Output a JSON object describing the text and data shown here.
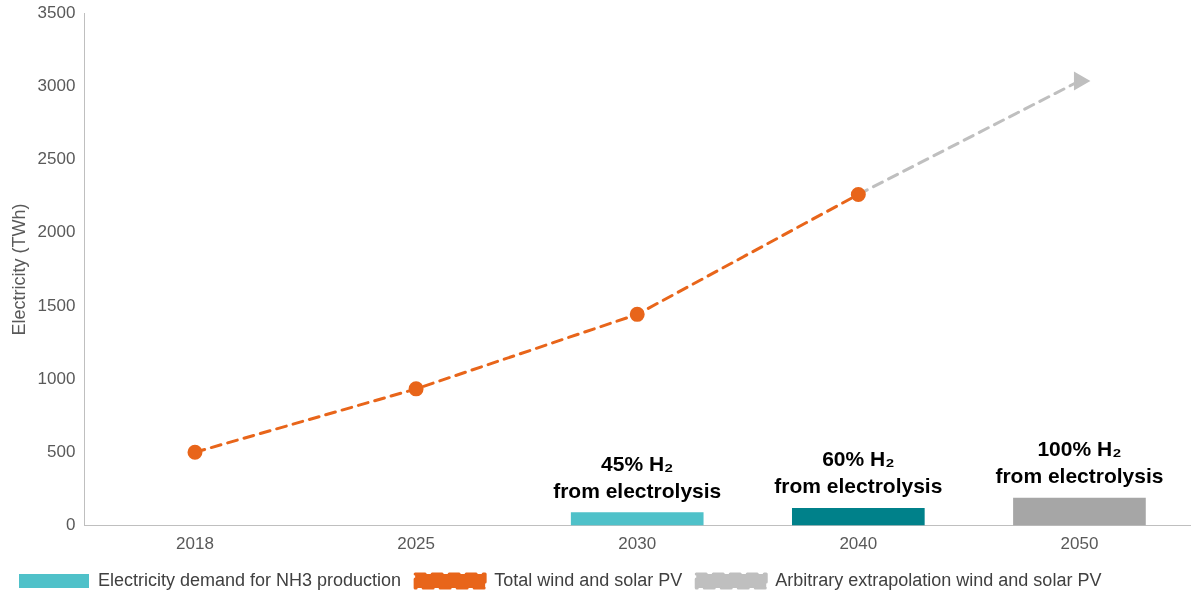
{
  "chart_data": {
    "type": "bar",
    "ylabel": "Electricity (TWh)",
    "categories": [
      "2018",
      "2025",
      "2030",
      "2040",
      "2050"
    ],
    "series": [
      {
        "name": "Electricity demand for NH3 production",
        "color": "#4fc1c9",
        "colors": [
          "#4fc1c9",
          "#4fc1c9",
          "#4fc1c9",
          "#00818a",
          "#a6a6a6"
        ],
        "values": [
          null,
          null,
          91,
          121,
          190
        ]
      },
      {
        "type": "line",
        "name": "Total wind and solar PV",
        "color": "#e8651a",
        "marker": "circle",
        "line_style": "dashed",
        "values": [
          501,
          934,
          1443,
          2262,
          null
        ]
      },
      {
        "type": "line",
        "name": "Arbitrary extrapolation wind and solar PV",
        "color": "#bfbfbf",
        "marker": "triangle",
        "line_style": "dashed",
        "values": [
          null,
          null,
          null,
          2262,
          3037
        ]
      }
    ],
    "ylim": [
      0,
      3500
    ],
    "yticks": [
      0,
      500,
      1000,
      1500,
      2000,
      2500,
      3000,
      3500
    ],
    "grid": false,
    "legend": "bottom",
    "annotations": [
      {
        "text": "45% H₂\nfrom electrolysis",
        "x": "2030",
        "y": 91
      },
      {
        "text": "60% H₂\nfrom electrolysis",
        "x": "2040",
        "y": 121
      },
      {
        "text": "100% H₂\nfrom electrolysis",
        "x": "2050",
        "y": 190
      }
    ]
  }
}
